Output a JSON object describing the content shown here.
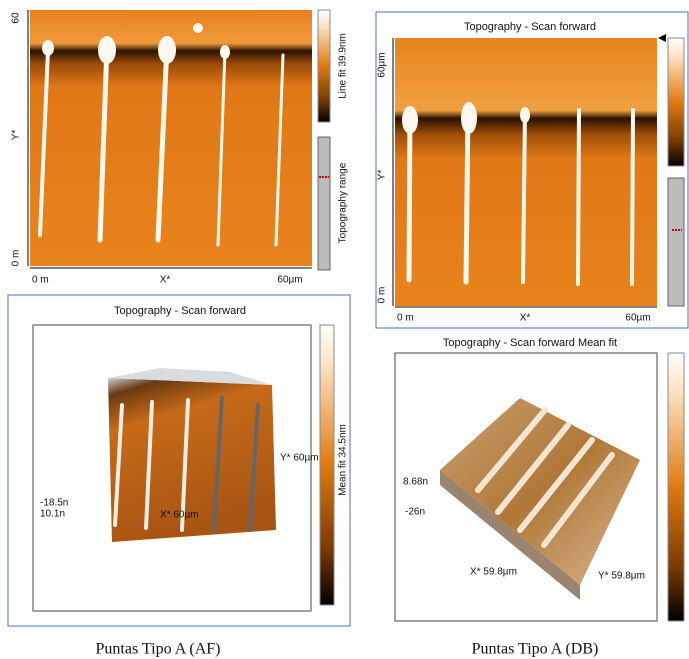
{
  "panels": [
    {
      "y_labels": [
        "60",
        "Y*",
        "0 m"
      ],
      "x_labels": [
        "0 m",
        "X*",
        "60µm"
      ],
      "colorbar_label": "Line fit 39.9nm",
      "range_label": "Topography range"
    },
    {
      "title": "Topography - Scan forward",
      "y_labels": [
        "60µm",
        "Y*",
        "0 m"
      ],
      "x_labels": [
        "0 m",
        "X*",
        "60µm"
      ]
    },
    {
      "title": "Topography - Scan forward",
      "colorbar_label": "Mean fit 34.5nm",
      "axis_labels": [
        "Y* 60µm",
        "-18.5n",
        "10.1n",
        "X* 60µm"
      ]
    },
    {
      "title": "Topography - Scan forward   Mean fit",
      "axis_labels": [
        "8.68n",
        "-26n",
        "X* 59.8µm",
        "Y* 59.8µm"
      ]
    }
  ],
  "captions": [
    "Puntas Tipo A (AF)",
    "Puntas Tipo A (DB)"
  ]
}
